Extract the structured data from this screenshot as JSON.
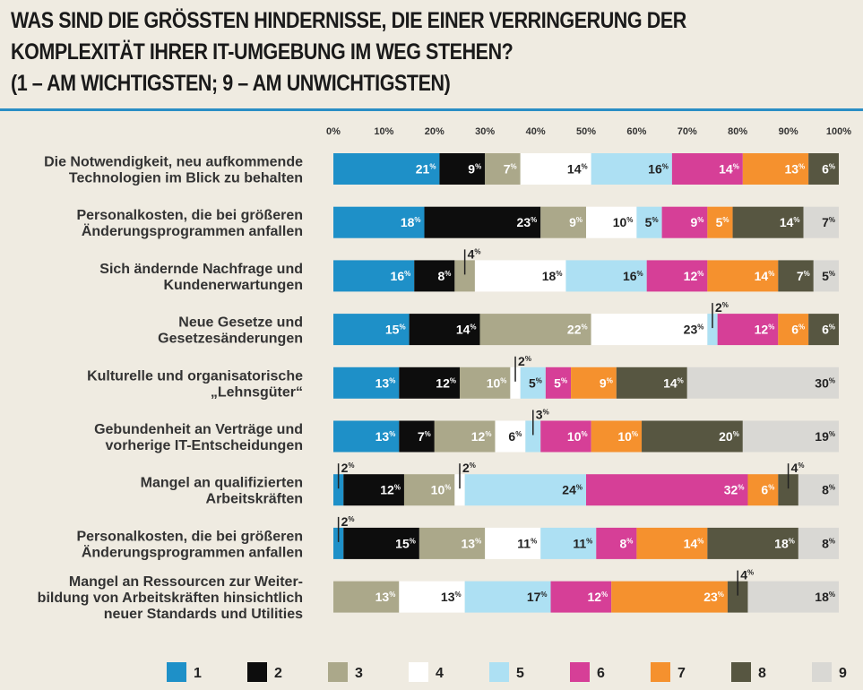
{
  "title_lines": [
    "WAS SIND DIE GRÖSSTEN HINDERNISSE, DIE EINER VERRINGERUNG DER",
    "KOMPLEXITÄT IHRER IT-UMGEBUNG IM WEG STEHEN?",
    "(1 – AM WICHTIGSTEN; 9 – AM UNWICHTIGSTEN)"
  ],
  "colors": {
    "accent_rule": "#2a8ec5",
    "series": [
      "#1e90c8",
      "#0d0d0d",
      "#aba88a",
      "#ffffff",
      "#ade0f3",
      "#d63f97",
      "#f5912e",
      "#575641",
      "#d9d8d4"
    ],
    "label_text": [
      "#ffffff",
      "#ffffff",
      "#ffffff",
      "#222222",
      "#222222",
      "#ffffff",
      "#ffffff",
      "#ffffff",
      "#222222"
    ]
  },
  "chart_data": {
    "type": "bar",
    "orientation": "horizontal",
    "stacked": true,
    "xlim": [
      0,
      100
    ],
    "x_ticks": [
      "0%",
      "10%",
      "20%",
      "30%",
      "40%",
      "50%",
      "60%",
      "70%",
      "80%",
      "90%",
      "100%"
    ],
    "legend_position": "bottom",
    "series_names": [
      "1",
      "2",
      "3",
      "4",
      "5",
      "6",
      "7",
      "8",
      "9"
    ],
    "categories": [
      [
        "Die Notwendigkeit, neu aufkommende",
        "Technologien im Blick zu behalten"
      ],
      [
        "Personalkosten, die bei größeren",
        "Änderungsprogrammen anfallen"
      ],
      [
        "Sich ändernde Nachfrage und",
        "Kundenerwartungen"
      ],
      [
        "Neue Gesetze und",
        "Gesetzesänderungen"
      ],
      [
        "Kulturelle und organisatorische",
        "„Lehnsgüter“"
      ],
      [
        "Gebundenheit an Verträge und",
        "vorherige IT-Entscheidungen"
      ],
      [
        "Mangel an qualifizierten",
        "Arbeitskräften"
      ],
      [
        "Personalkosten, die bei größeren",
        "Änderungsprogrammen anfallen"
      ],
      [
        "Mangel an Ressourcen zur Weiter-",
        "bildung von Arbeitskräften hinsichtlich",
        "neuer Standards und Utilities"
      ]
    ],
    "values": [
      [
        21,
        9,
        7,
        14,
        16,
        14,
        13,
        6,
        null
      ],
      [
        18,
        23,
        9,
        10,
        5,
        9,
        5,
        14,
        7
      ],
      [
        16,
        8,
        4,
        18,
        16,
        12,
        14,
        7,
        5
      ],
      [
        15,
        14,
        22,
        23,
        2,
        12,
        6,
        6,
        null
      ],
      [
        13,
        12,
        10,
        2,
        5,
        5,
        9,
        14,
        30
      ],
      [
        13,
        7,
        12,
        6,
        3,
        10,
        10,
        20,
        19
      ],
      [
        2,
        12,
        10,
        2,
        24,
        32,
        6,
        4,
        8
      ],
      [
        2,
        15,
        13,
        11,
        11,
        8,
        14,
        18,
        8
      ],
      [
        null,
        null,
        13,
        13,
        17,
        12,
        23,
        4,
        18
      ]
    ]
  }
}
